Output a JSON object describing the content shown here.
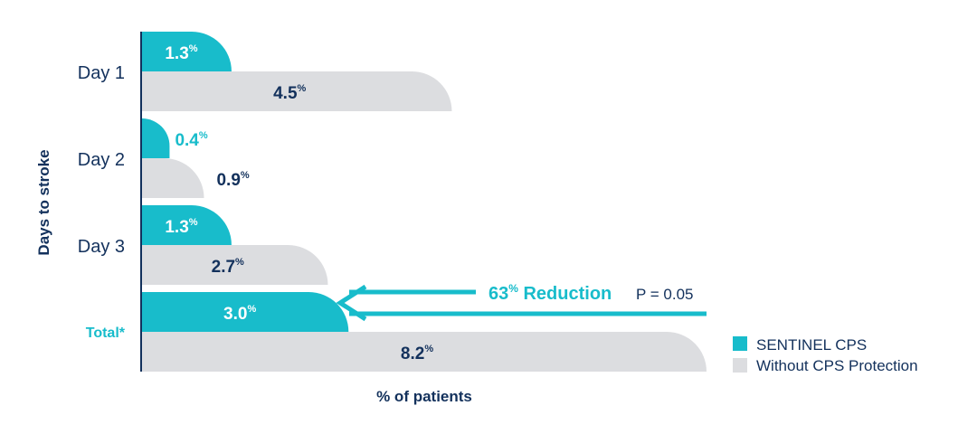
{
  "chart_data": {
    "type": "bar",
    "ylabel": "Days to stroke",
    "xlabel": "% of patients",
    "categories": [
      "Day 1",
      "Day 2",
      "Day 3",
      "Total*"
    ],
    "category_colors": [
      "#13315c",
      "#13315c",
      "#13315c",
      "#18bccb"
    ],
    "series": [
      {
        "name": "SENTINEL CPS",
        "color": "#18bccb",
        "values": [
          1.3,
          0.4,
          1.3,
          3.0
        ],
        "labels": [
          "1.3",
          "0.4",
          "1.3",
          "3.0"
        ]
      },
      {
        "name": "Without CPS Protection",
        "color": "#dcdde0",
        "values": [
          4.5,
          0.9,
          2.7,
          8.2
        ],
        "labels": [
          "4.5",
          "0.9",
          "2.7",
          "8.2"
        ]
      }
    ],
    "value_suffix": "%",
    "xlim": [
      0,
      8.2
    ],
    "annotation": {
      "value": "63",
      "value_suffix": "%",
      "text": "Reduction",
      "pvalue": "P = 0.05",
      "color": "#18bccb"
    }
  }
}
